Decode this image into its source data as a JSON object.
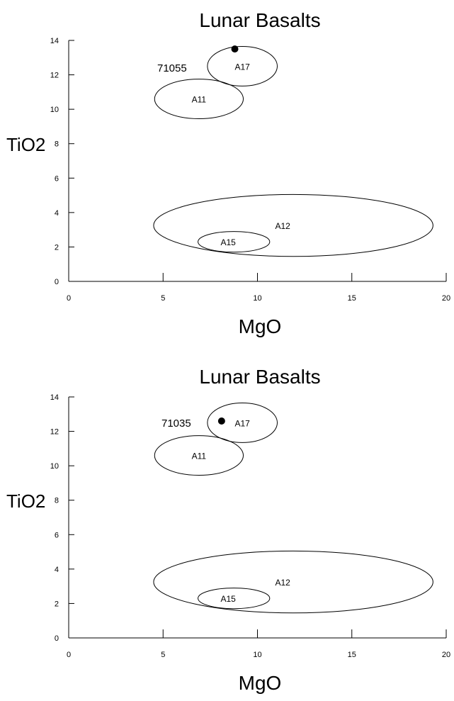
{
  "chart_data": [
    {
      "type": "scatter",
      "title": "Lunar Basalts",
      "xlabel": "MgO",
      "ylabel": "TiO2",
      "xlim": [
        0,
        20
      ],
      "ylim": [
        0,
        14
      ],
      "xticks": [
        0,
        5,
        10,
        15,
        20
      ],
      "yticks": [
        0,
        2,
        4,
        6,
        8,
        10,
        12,
        14
      ],
      "grid": false,
      "fields": [
        {
          "name": "A17",
          "cx": 9.2,
          "cy": 12.5,
          "rx": 1.85,
          "ry": 1.15
        },
        {
          "name": "A11",
          "cx": 6.9,
          "cy": 10.6,
          "rx": 2.35,
          "ry": 1.15
        },
        {
          "name": "A12",
          "cx": 11.9,
          "cy": 3.25,
          "rx": 7.4,
          "ry": 1.8
        },
        {
          "name": "A15",
          "cx": 8.75,
          "cy": 2.3,
          "rx": 1.9,
          "ry": 0.6
        }
      ],
      "points": [
        {
          "label": "71055",
          "x": 8.8,
          "y": 13.5
        }
      ]
    },
    {
      "type": "scatter",
      "title": "Lunar Basalts",
      "xlabel": "MgO",
      "ylabel": "TiO2",
      "xlim": [
        0,
        20
      ],
      "ylim": [
        0,
        14
      ],
      "xticks": [
        0,
        5,
        10,
        15,
        20
      ],
      "yticks": [
        0,
        2,
        4,
        6,
        8,
        10,
        12,
        14
      ],
      "grid": false,
      "fields": [
        {
          "name": "A17",
          "cx": 9.2,
          "cy": 12.5,
          "rx": 1.85,
          "ry": 1.15
        },
        {
          "name": "A11",
          "cx": 6.9,
          "cy": 10.6,
          "rx": 2.35,
          "ry": 1.15
        },
        {
          "name": "A12",
          "cx": 11.9,
          "cy": 3.25,
          "rx": 7.4,
          "ry": 1.8
        },
        {
          "name": "A15",
          "cx": 8.75,
          "cy": 2.3,
          "rx": 1.9,
          "ry": 0.6
        }
      ],
      "points": [
        {
          "label": "71035",
          "x": 8.1,
          "y": 12.6
        }
      ]
    }
  ]
}
